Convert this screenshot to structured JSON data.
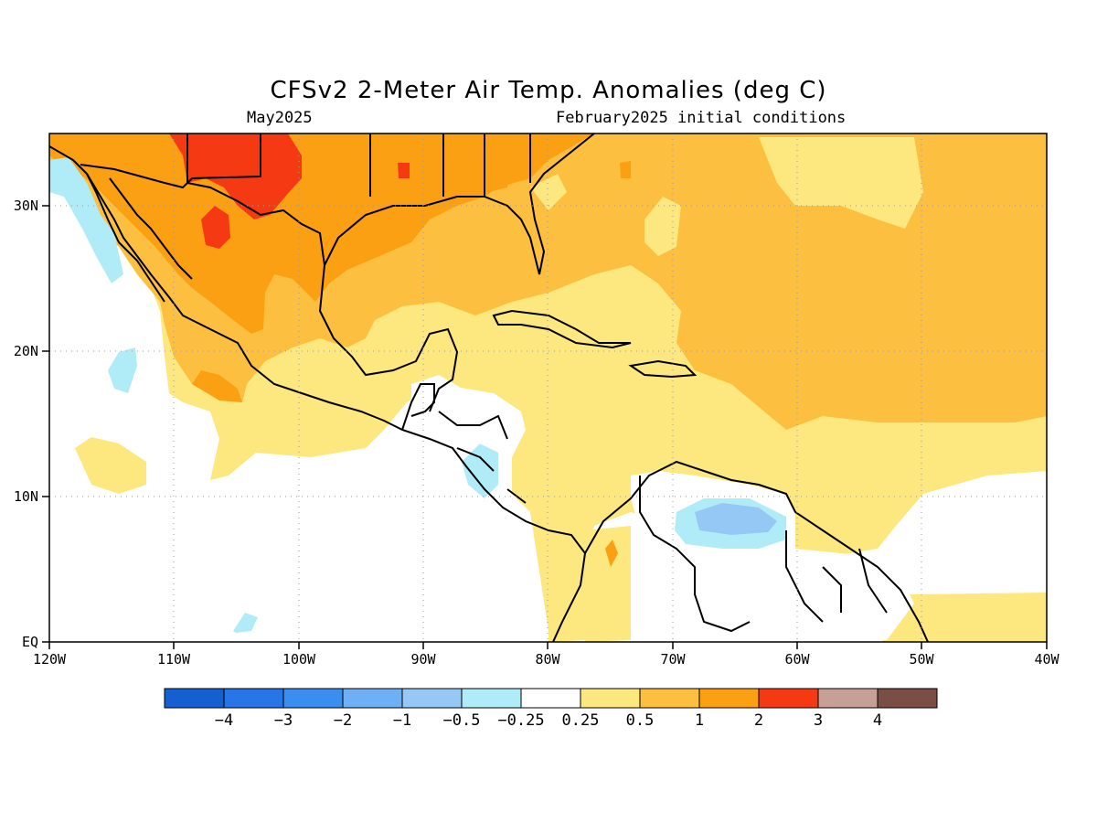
{
  "title": "CFSv2 2-Meter Air Temp. Anomalies (deg C)",
  "valid_month": "May2025",
  "initial_conditions": "February2025 initial conditions",
  "lat_labels": [
    "30N",
    "20N",
    "10N",
    "EQ"
  ],
  "lon_labels": [
    "120W",
    "110W",
    "100W",
    "90W",
    "80W",
    "70W",
    "60W",
    "50W",
    "40W"
  ],
  "colorbar": {
    "labels": [
      "-4",
      "-3",
      "-2",
      "-1",
      "-0.5",
      "-0.25",
      "0.25",
      "0.5",
      "1",
      "2",
      "3",
      "4"
    ],
    "colors": [
      "#1560d0",
      "#2875e8",
      "#3a8ef0",
      "#6fb0f5",
      "#96c8f6",
      "#b0ecf8",
      "#ffffff",
      "#fde77f",
      "#fdbf3f",
      "#fba012",
      "#f53a13",
      "#c6a096",
      "#7a4d45"
    ]
  },
  "palette": {
    "ocean_neutral": "#ffffff",
    "weak_warm": "#fde77f",
    "mod_warm": "#fdbf3f",
    "strong_warm": "#fba012",
    "very_warm": "#f53a13",
    "weak_cool": "#b0ecf8",
    "mod_cool": "#96c8f6"
  }
}
